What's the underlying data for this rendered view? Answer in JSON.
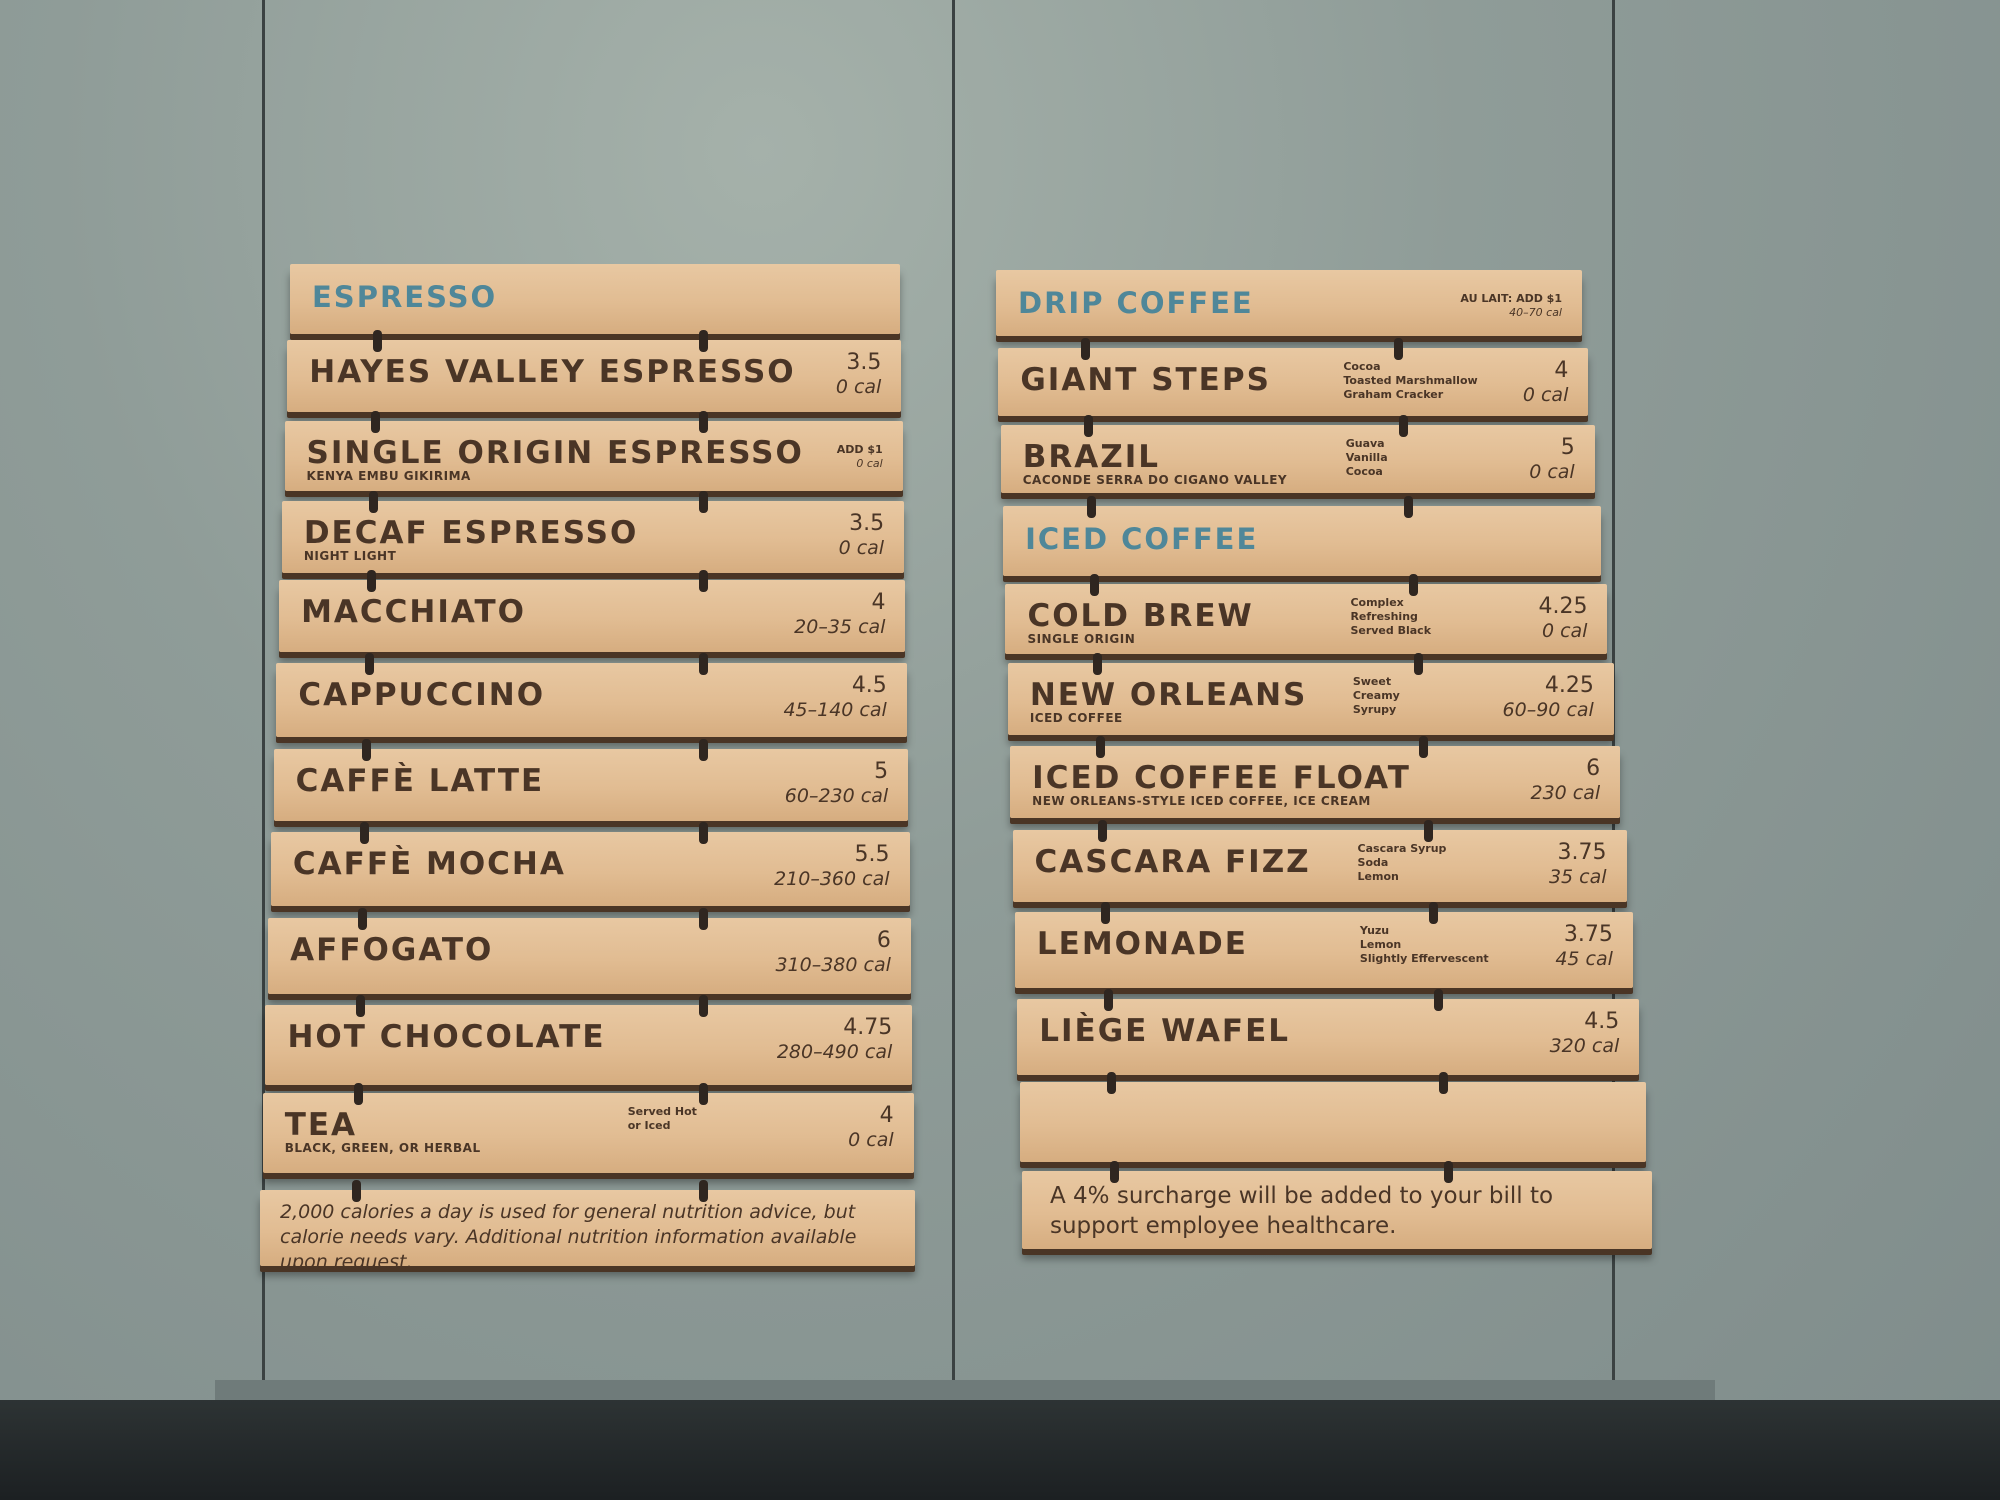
{
  "colors": {
    "wall": "#8f9c98",
    "wood": "#e1bc92",
    "header_text": "#4f8799",
    "engraving": "#4a3526"
  },
  "left_board": {
    "planks": [
      {
        "type": "header",
        "name": "ESPRESSO"
      },
      {
        "name": "HAYES VALLEY ESPRESSO",
        "price": "3.5",
        "cal": "0 cal"
      },
      {
        "name": "SINGLE ORIGIN ESPRESSO",
        "sub": "KENYA EMBU GIKIRIMA",
        "price": "ADD $1",
        "cal": "0 cal",
        "small": true
      },
      {
        "name": "DECAF ESPRESSO",
        "sub": "NIGHT LIGHT",
        "price": "3.5",
        "cal": "0 cal"
      },
      {
        "name": "MACCHIATO",
        "price": "4",
        "cal": "20–35 cal"
      },
      {
        "name": "CAPPUCCINO",
        "price": "4.5",
        "cal": "45–140 cal"
      },
      {
        "name": "CAFFÈ LATTE",
        "price": "5",
        "cal": "60–230 cal"
      },
      {
        "name": "CAFFÈ MOCHA",
        "price": "5.5",
        "cal": "210–360 cal"
      },
      {
        "name": "AFFOGATO",
        "price": "6",
        "cal": "310–380 cal"
      },
      {
        "name": "HOT CHOCOLATE",
        "price": "4.75",
        "cal": "280–490 cal"
      },
      {
        "name": "TEA",
        "sub": "BLACK, GREEN, OR HERBAL",
        "notes": [
          "Served Hot",
          "or Iced"
        ],
        "price": "4",
        "cal": "0 cal"
      },
      {
        "type": "footnote",
        "text": "2,000 calories a day is used for general nutrition advice, but calorie needs vary. Additional nutrition information available upon request."
      }
    ]
  },
  "right_board": {
    "planks": [
      {
        "type": "header",
        "name": "DRIP COFFEE",
        "price": "AU LAIT: ADD $1",
        "cal": "40–70 cal",
        "small": true
      },
      {
        "name": "GIANT STEPS",
        "notes": [
          "Cocoa",
          "Toasted Marshmallow",
          "Graham Cracker"
        ],
        "price": "4",
        "cal": "0 cal"
      },
      {
        "name": "BRAZIL",
        "sub": "CACONDE SERRA DO CIGANO VALLEY",
        "notes": [
          "Guava",
          "Vanilla",
          "Cocoa"
        ],
        "price": "5",
        "cal": "0 cal"
      },
      {
        "type": "header",
        "name": "ICED COFFEE"
      },
      {
        "name": "COLD BREW",
        "sub": "SINGLE ORIGIN",
        "notes": [
          "Complex",
          "Refreshing",
          "Served Black"
        ],
        "price": "4.25",
        "cal": "0 cal"
      },
      {
        "name": "NEW ORLEANS",
        "sub": "ICED COFFEE",
        "notes": [
          "Sweet",
          "Creamy",
          "Syrupy"
        ],
        "price": "4.25",
        "cal": "60–90 cal"
      },
      {
        "name": "ICED COFFEE FLOAT",
        "sub": "NEW ORLEANS-STYLE ICED COFFEE, ICE CREAM",
        "price": "6",
        "cal": "230 cal"
      },
      {
        "name": "CASCARA FIZZ",
        "notes": [
          "Cascara Syrup",
          "Soda",
          "Lemon"
        ],
        "price": "3.75",
        "cal": "35 cal"
      },
      {
        "name": "LEMONADE",
        "notes": [
          "Yuzu",
          "Lemon",
          "Slightly Effervescent"
        ],
        "price": "3.75",
        "cal": "45 cal"
      },
      {
        "name": "LIÈGE WAFEL",
        "price": "4.5",
        "cal": "320 cal"
      },
      {
        "type": "blank"
      },
      {
        "type": "footnote2",
        "text": "A 4% surcharge will be added to your bill to support employee healthcare."
      }
    ]
  }
}
